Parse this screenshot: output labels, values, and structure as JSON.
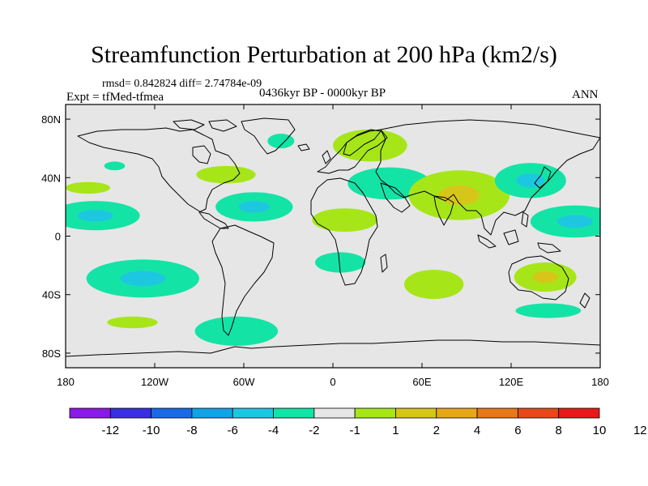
{
  "title": "Streamfunction Perturbation at 200 hPa (km2/s)",
  "stats": "rmsd= 0.842824 diff= 2.74784e-09",
  "experiment": "Expt = tfMed-tfmea",
  "period": "0436kyr BP - 0000kyr BP",
  "season": "ANN",
  "map": {
    "projection": "cylindrical equidistant",
    "lon_range": [
      -180,
      180
    ],
    "lat_range": [
      -90,
      90
    ],
    "lon_ticks": [
      {
        "value": -180,
        "label": "180"
      },
      {
        "value": -120,
        "label": "120W"
      },
      {
        "value": -60,
        "label": "60W"
      },
      {
        "value": 0,
        "label": "0"
      },
      {
        "value": 60,
        "label": "60E"
      },
      {
        "value": 120,
        "label": "120E"
      },
      {
        "value": 180,
        "label": "180"
      }
    ],
    "lat_ticks": [
      {
        "value": 80,
        "label": "80N"
      },
      {
        "value": 40,
        "label": "40N"
      },
      {
        "value": 0,
        "label": "0"
      },
      {
        "value": -40,
        "label": "40S"
      },
      {
        "value": -80,
        "label": "80S"
      }
    ],
    "background_color": "#e6e6e6",
    "coastline_color": "#000000"
  },
  "colorbar": {
    "colors": [
      "#8a1be5",
      "#3a2fe0",
      "#1a6ae6",
      "#12a3e6",
      "#1ec7e0",
      "#14e3a6",
      "#e6e6e6",
      "#a6e619",
      "#d7c61a",
      "#e6a81a",
      "#e6781a",
      "#e6481a",
      "#e61a1a"
    ],
    "labels": [
      "-12",
      "-10",
      "-8",
      "-6",
      "-4",
      "-2",
      "-1",
      "1",
      "2",
      "4",
      "6",
      "8",
      "10",
      "12"
    ]
  },
  "anomalies": [
    {
      "lon": -160,
      "lat": 14,
      "rx": 30,
      "ry": 10,
      "color": "#14e3a6",
      "core": "#1ec7e0"
    },
    {
      "lon": -165,
      "lat": 33,
      "rx": 15,
      "ry": 4,
      "color": "#a6e619"
    },
    {
      "lon": -147,
      "lat": 48,
      "rx": 7,
      "ry": 3,
      "color": "#14e3a6"
    },
    {
      "lon": -128,
      "lat": -29,
      "rx": 38,
      "ry": 13,
      "color": "#14e3a6",
      "core": "#1ec7e0"
    },
    {
      "lon": -135,
      "lat": -59,
      "rx": 17,
      "ry": 4,
      "color": "#a6e619"
    },
    {
      "lon": -53,
      "lat": 20,
      "rx": 26,
      "ry": 10,
      "color": "#14e3a6",
      "core": "#1ec7e0"
    },
    {
      "lon": -72,
      "lat": 42,
      "rx": 20,
      "ry": 6,
      "color": "#a6e619"
    },
    {
      "lon": -35,
      "lat": 65,
      "rx": 9,
      "ry": 5,
      "color": "#14e3a6"
    },
    {
      "lon": -65,
      "lat": -65,
      "rx": 28,
      "ry": 10,
      "color": "#14e3a6"
    },
    {
      "lon": 25,
      "lat": 62,
      "rx": 25,
      "ry": 11,
      "color": "#a6e619"
    },
    {
      "lon": 38,
      "lat": 36,
      "rx": 28,
      "ry": 11,
      "color": "#14e3a6"
    },
    {
      "lon": 8,
      "lat": 11,
      "rx": 22,
      "ry": 8,
      "color": "#a6e619"
    },
    {
      "lon": 5,
      "lat": -18,
      "rx": 17,
      "ry": 7,
      "color": "#14e3a6"
    },
    {
      "lon": 85,
      "lat": 28,
      "rx": 34,
      "ry": 17,
      "color": "#a6e619",
      "core": "#d7c61a"
    },
    {
      "lon": 68,
      "lat": -33,
      "rx": 20,
      "ry": 10,
      "color": "#a6e619"
    },
    {
      "lon": 133,
      "lat": 38,
      "rx": 24,
      "ry": 12,
      "color": "#14e3a6",
      "core": "#1ec7e0"
    },
    {
      "lon": 163,
      "lat": 10,
      "rx": 30,
      "ry": 11,
      "color": "#14e3a6",
      "core": "#1ec7e0"
    },
    {
      "lon": 143,
      "lat": -28,
      "rx": 21,
      "ry": 10,
      "color": "#a6e619",
      "core": "#d7c61a"
    },
    {
      "lon": 145,
      "lat": -51,
      "rx": 22,
      "ry": 5,
      "color": "#14e3a6"
    }
  ]
}
